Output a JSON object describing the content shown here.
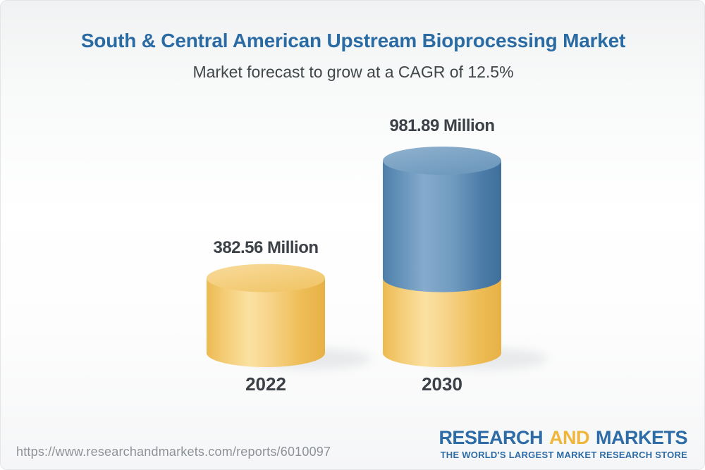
{
  "header": {
    "title": "South & Central American Upstream Bioprocessing Market",
    "subtitle": "Market forecast to grow at a CAGR of 12.5%"
  },
  "chart_data": {
    "type": "bar",
    "style": "3d-cylinder",
    "title": "South & Central American Upstream Bioprocessing Market",
    "subtitle": "Market forecast to grow at a CAGR of 12.5%",
    "cagr_percent": 12.5,
    "unit": "Million",
    "categories": [
      "2022",
      "2030"
    ],
    "values": [
      382.56,
      981.89
    ],
    "value_labels": [
      "382.56 Million",
      "981.89 Million"
    ],
    "bar_colors": [
      "#f2c76e",
      "#5585b2"
    ],
    "stacking_note": "2030 cylinder is stacked: yellow base segment equals the 2022 value (382.56), blue segment above shows growth up to 981.89",
    "legend": "none",
    "axes": "none",
    "grid": false
  },
  "footer": {
    "source_url": "https://www.researchandmarkets.com/reports/6010097",
    "logo": {
      "word1": "RESEARCH",
      "word2": "AND",
      "word3": "MARKETS",
      "tagline": "THE WORLD'S LARGEST MARKET RESEARCH STORE"
    }
  },
  "colors": {
    "title_blue": "#2b6ba4",
    "subtitle_gray": "#41464b",
    "label_dark": "#3c4147",
    "url_gray": "#8e9296",
    "logo_blue": "#2d6ca6",
    "logo_gold": "#f0b63c",
    "bar_yellow": "#f2c76e",
    "bar_blue": "#5585b2",
    "background_top": "#f1f2f3",
    "background_mid": "#ffffff"
  }
}
